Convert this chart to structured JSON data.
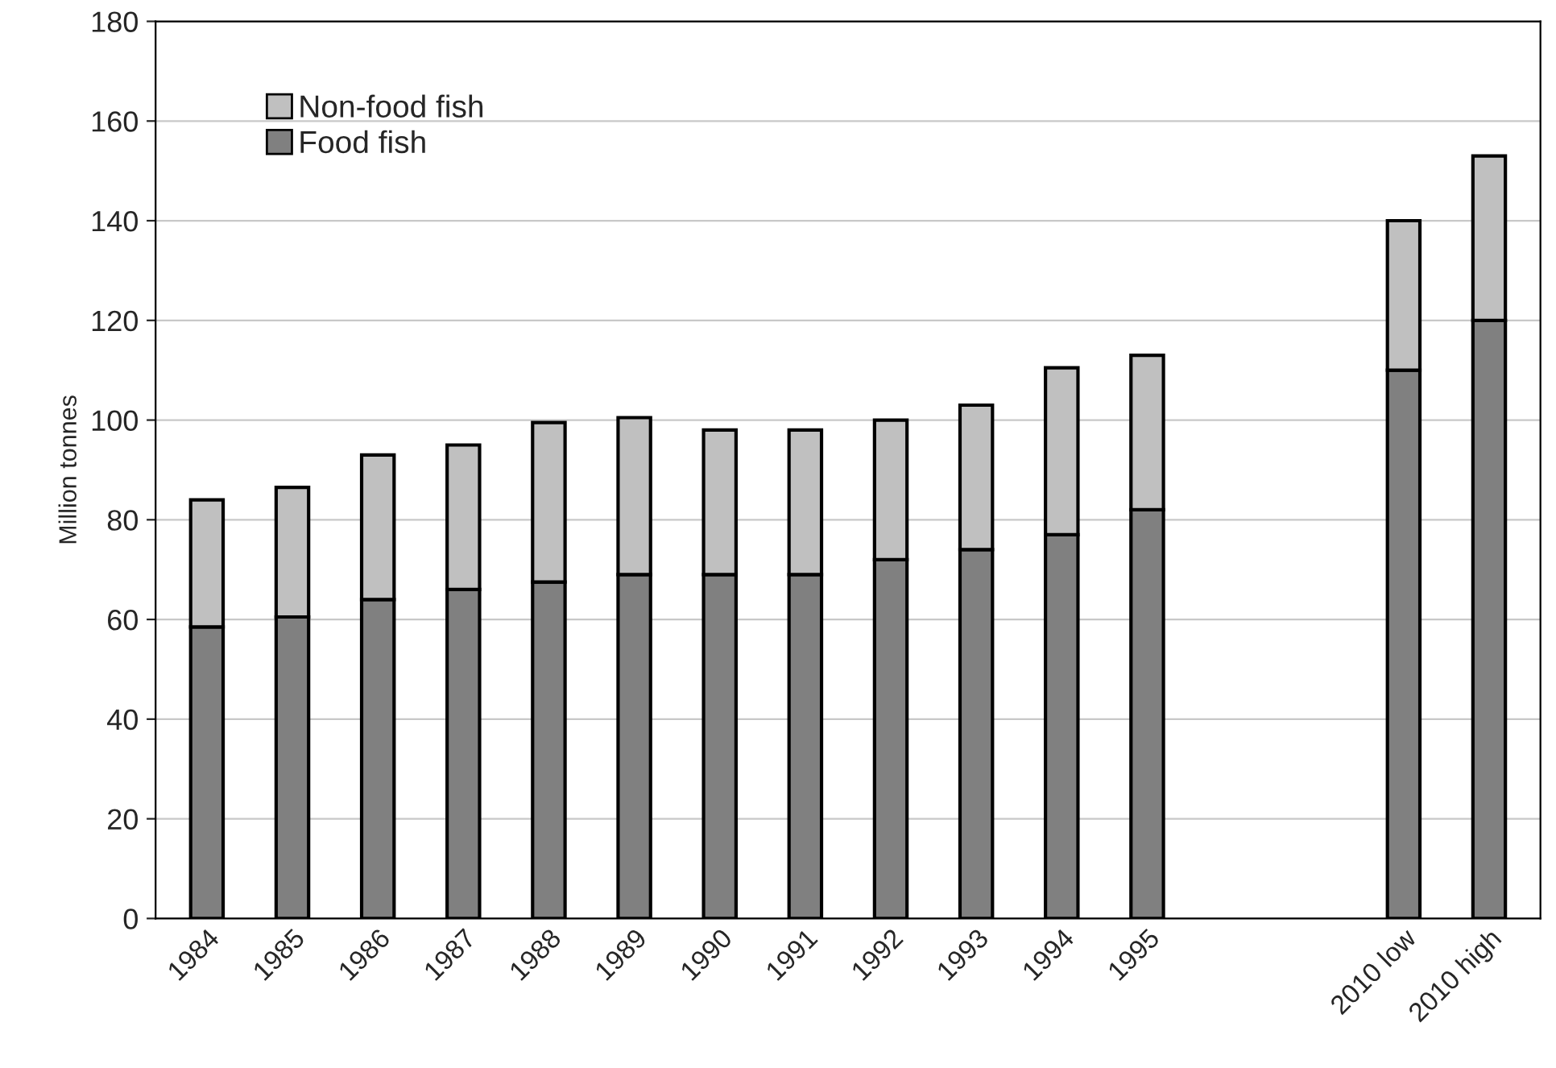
{
  "chart_data": {
    "type": "bar",
    "ylabel": "Million tonnes",
    "stacked": true,
    "categories": [
      "1984",
      "1985",
      "1986",
      "1987",
      "1988",
      "1989",
      "1990",
      "1991",
      "1992",
      "1993",
      "1994",
      "1995",
      null,
      null,
      "2010 low",
      "2010 high"
    ],
    "series": [
      {
        "name": "Food fish",
        "color": "#808080",
        "values": [
          58.5,
          60.5,
          64,
          66,
          67.5,
          69,
          69,
          69,
          72,
          74,
          77,
          82,
          null,
          null,
          110,
          120
        ]
      },
      {
        "name": "Non-food fish",
        "color": "#c0c0c0",
        "values": [
          25.5,
          26,
          29,
          29,
          32,
          31.5,
          29,
          29,
          28,
          29,
          33.5,
          31,
          null,
          null,
          30,
          33
        ]
      }
    ],
    "ylim": [
      0,
      180
    ],
    "yticks": [
      0,
      20,
      40,
      60,
      80,
      100,
      120,
      140,
      160,
      180
    ],
    "grid": "y",
    "legend": "top left"
  }
}
